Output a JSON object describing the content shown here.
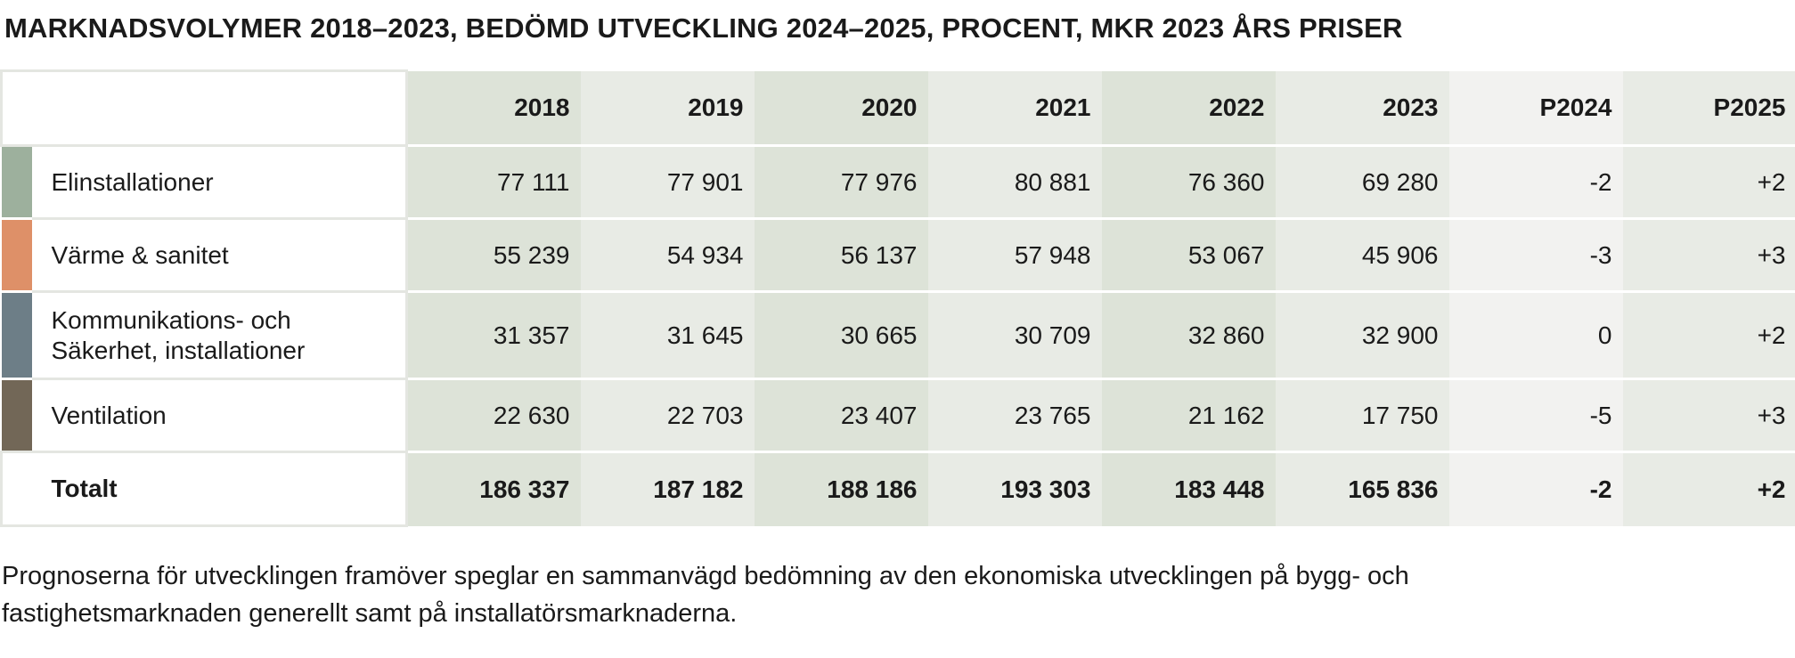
{
  "title": "MARKNADSVOLYMER 2018–2023, BEDÖMD UTVECKLING 2024–2025, PROCENT, MKR 2023 ÅRS PRISER",
  "note_line1": "Prognoserna för utvecklingen framöver speglar en sammanvägd bedömning av den ekonomiska utvecklingen på bygg- och",
  "note_line2": "fastighetsmarknaden generellt samt på installatörsmarknaderna.",
  "colors": {
    "elinstallationer": "#9db09d",
    "varme_sanitet": "#de9068",
    "kommunikation": "#6d7e87",
    "ventilation": "#726757"
  },
  "chart_data": {
    "type": "table",
    "columns": [
      "2018",
      "2019",
      "2020",
      "2021",
      "2022",
      "2023",
      "P2024",
      "P2025"
    ],
    "rows": [
      {
        "label_line1": "Elinstallationer",
        "label_line2": "",
        "values": [
          "77 111",
          "77 901",
          "77 976",
          "80 881",
          "76 360",
          "69 280",
          "-2",
          "+2"
        ]
      },
      {
        "label_line1": "Värme & sanitet",
        "label_line2": "",
        "values": [
          "55 239",
          "54 934",
          "56 137",
          "57 948",
          "53 067",
          "45 906",
          "-3",
          "+3"
        ]
      },
      {
        "label_line1": "Kommunikations- och",
        "label_line2": "Säkerhet, installationer",
        "values": [
          "31 357",
          "31 645",
          "30 665",
          "30 709",
          "32 860",
          "32 900",
          "0",
          "+2"
        ]
      },
      {
        "label_line1": "Ventilation",
        "label_line2": "",
        "values": [
          "22 630",
          "22 703",
          "23 407",
          "23 765",
          "21 162",
          "17 750",
          "-5",
          "+3"
        ]
      }
    ],
    "total": {
      "label": "Totalt",
      "values": [
        "186 337",
        "187 182",
        "188 186",
        "193 303",
        "183 448",
        "165 836",
        "-2",
        "+2"
      ]
    }
  }
}
